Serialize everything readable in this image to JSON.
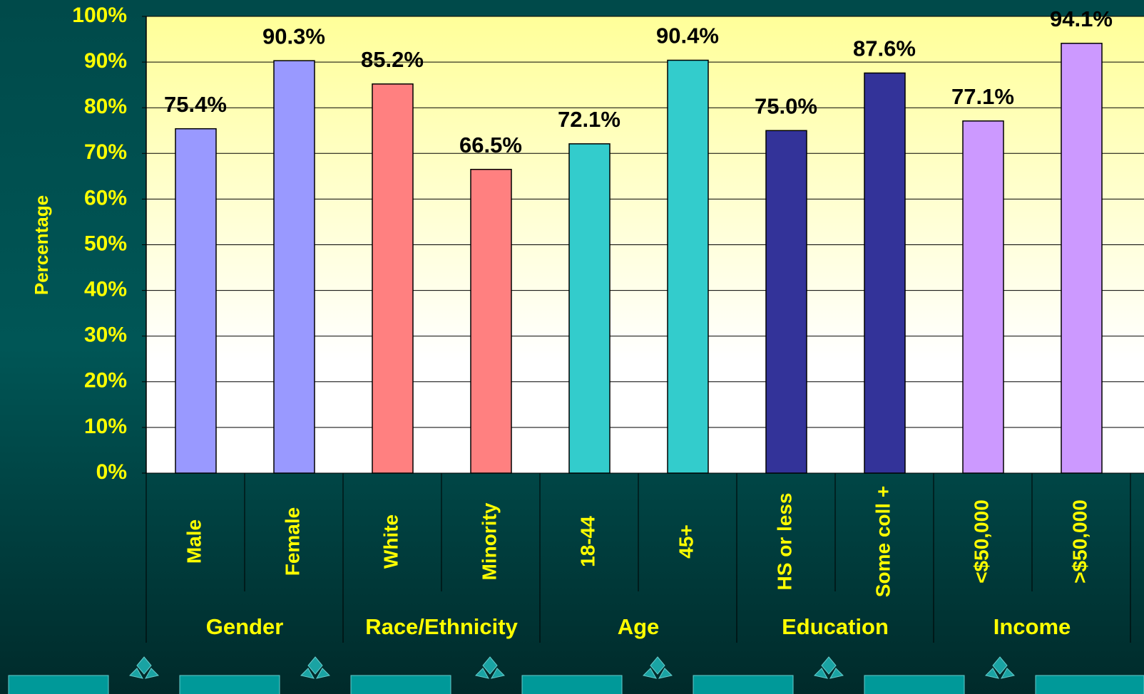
{
  "chart_data": {
    "type": "bar",
    "y_label": "Percentage",
    "categories": [
      "Male",
      "Female",
      "White",
      "Minority",
      "18-44",
      "45+",
      "HS or less",
      "Some coll +",
      "<$50,000",
      ">$50,000"
    ],
    "groups": [
      "Gender",
      "Race/Ethnicity",
      "Age",
      "Education",
      "Income"
    ],
    "values": [
      75.4,
      90.3,
      85.2,
      66.5,
      72.1,
      90.4,
      75.0,
      87.6,
      77.1,
      94.1
    ],
    "value_labels": [
      "75.4%",
      "90.3%",
      "85.2%",
      "66.5%",
      "72.1%",
      "90.4%",
      "75.0%",
      "87.6%",
      "77.1%",
      "94.1%"
    ],
    "colors": [
      "#9999ff",
      "#9999ff",
      "#ff8080",
      "#ff8080",
      "#33cccc",
      "#33cccc",
      "#333399",
      "#333399",
      "#cc99ff",
      "#cc99ff"
    ],
    "ylim": [
      0,
      100
    ],
    "yticks": [
      {
        "value": 0,
        "label": "0%"
      },
      {
        "value": 10,
        "label": "10%"
      },
      {
        "value": 20,
        "label": "20%"
      },
      {
        "value": 30,
        "label": "30%"
      },
      {
        "value": 40,
        "label": "40%"
      },
      {
        "value": 50,
        "label": "50%"
      },
      {
        "value": 60,
        "label": "60%"
      },
      {
        "value": 70,
        "label": "70%"
      },
      {
        "value": 80,
        "label": "80%"
      },
      {
        "value": 90,
        "label": "90%"
      },
      {
        "value": 100,
        "label": "100%"
      }
    ],
    "grid": true
  }
}
